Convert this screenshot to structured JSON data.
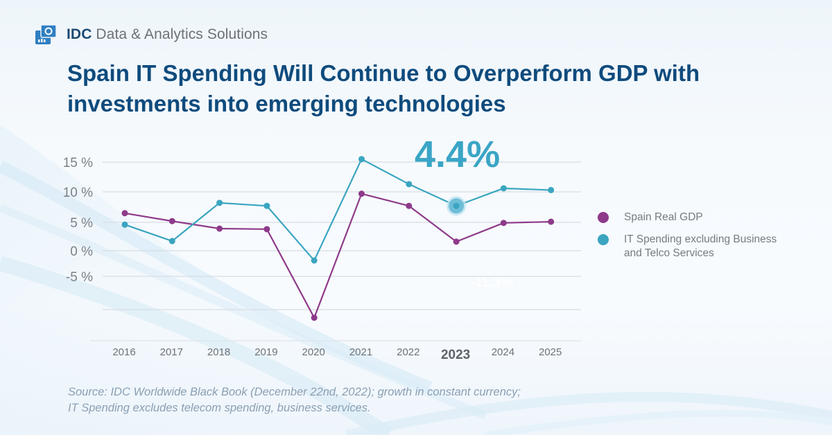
{
  "brand": {
    "logo_icon": "idc-logo-icon",
    "name_bold": "IDC",
    "name_rest": " Data & Analytics Solutions"
  },
  "headline": "Spain IT Spending Will Continue to Overperform GDP with investments into emerging technologies",
  "callout": {
    "value": "4.4%",
    "hidden_label": "-11.3%",
    "color": "#3aa5c6"
  },
  "source_lines": [
    "Source: IDC Worldwide Black Book (December 22nd, 2022); growth in constant currency;",
    "IT Spending excludes telecom spending, business services."
  ],
  "chart_data": {
    "type": "line",
    "title": "",
    "xlabel": "",
    "ylabel": "",
    "x": [
      "2016",
      "2017",
      "2018",
      "2019",
      "2020",
      "2021",
      "2022",
      "2023",
      "2024",
      "2025"
    ],
    "highlight_x": "2023",
    "y_ticks": [
      {
        "value": 15,
        "label": "15 %"
      },
      {
        "value": 10,
        "label": "10 %"
      },
      {
        "value": 5,
        "label": "5 %"
      },
      {
        "value": 0,
        "label": "0 %"
      },
      {
        "value": -5,
        "label": "-5 %"
      },
      {
        "value": -10,
        "label": ""
      }
    ],
    "ylim": [
      -15,
      15
    ],
    "grid": true,
    "legend_position": "right",
    "series": [
      {
        "name": "Spain Real GDP",
        "color": "#8e3a8a",
        "values": [
          6.5,
          5.2,
          3.9,
          3.8,
          -11.3,
          9.7,
          7.7,
          1.6,
          4.9,
          5.1
        ]
      },
      {
        "name": "IT Spending excluding Business and Telco Services",
        "color": "#3aa5c0",
        "values": [
          4.6,
          1.7,
          8.2,
          7.7,
          -1.9,
          15.5,
          11.3,
          7.7,
          10.6,
          10.3
        ]
      }
    ]
  }
}
